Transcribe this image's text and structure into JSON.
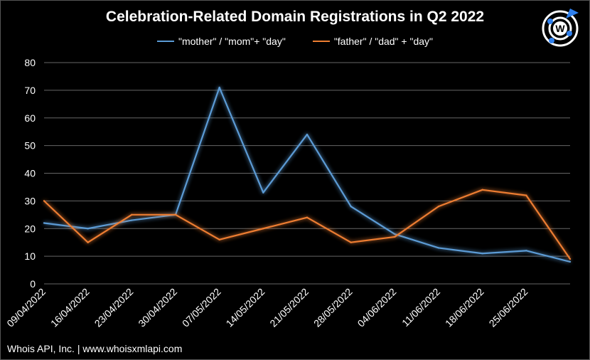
{
  "chart_data": {
    "type": "line",
    "title": "Celebration-Related Domain Registrations in Q2 2022",
    "x": [
      "09/04/2022",
      "16/04/2022",
      "23/04/2022",
      "30/04/2022",
      "07/05/2022",
      "14/05/2022",
      "21/05/2022",
      "28/05/2022",
      "04/06/2022",
      "11/06/2022",
      "18/06/2022",
      "25/06/2022",
      ""
    ],
    "series": [
      {
        "name": "\"mother\" / \"mom\"+ \"day\"",
        "color": "#5b9bd5",
        "values": [
          22,
          20,
          23,
          25,
          71,
          33,
          54,
          28,
          18,
          13,
          11,
          12,
          8
        ]
      },
      {
        "name": "\"father\" / \"dad\" + \"day\"",
        "color": "#ed7d31",
        "values": [
          30,
          15,
          25,
          25,
          16,
          20,
          24,
          15,
          17,
          28,
          34,
          32,
          9
        ]
      }
    ],
    "ylim": [
      0,
      80
    ],
    "yticks": [
      0,
      10,
      20,
      30,
      40,
      50,
      60,
      70,
      80
    ],
    "grid": true,
    "legend": "top"
  },
  "footer": "Whois API, Inc. | www.whoisxmlapi.com",
  "logo_text": "W"
}
